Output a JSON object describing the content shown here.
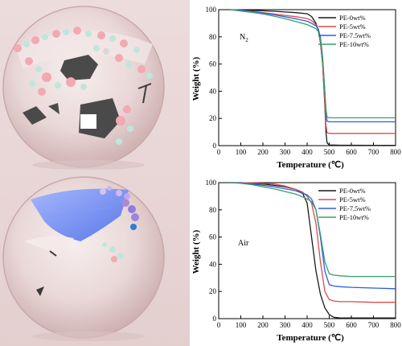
{
  "chart_data": [
    {
      "type": "line",
      "annotation": "N",
      "annotation_sub": "2",
      "xlabel": "Temperature (℃)",
      "ylabel": "Weight (%)",
      "xlim": [
        0,
        800
      ],
      "ylim": [
        0,
        100
      ],
      "xticks": [
        0,
        100,
        200,
        300,
        400,
        500,
        600,
        700,
        800
      ],
      "yticks": [
        0,
        20,
        40,
        60,
        80,
        100
      ],
      "grid": false,
      "legend": "top-right",
      "series": [
        {
          "name": "PE-0wt%",
          "color": "#1a1a1a",
          "x": [
            50,
            100,
            150,
            200,
            250,
            300,
            350,
            400,
            420,
            440,
            450,
            460,
            470,
            480,
            485,
            490,
            500,
            550,
            600,
            700,
            800
          ],
          "y": [
            100,
            99.8,
            99.5,
            99.2,
            98.8,
            98.3,
            97.8,
            97,
            95,
            90,
            85,
            76,
            60,
            30,
            10,
            2,
            0.5,
            0.3,
            0.3,
            0.2,
            0.2
          ]
        },
        {
          "name": "PE-5wt%",
          "color": "#d94d4d",
          "x": [
            50,
            100,
            150,
            200,
            250,
            300,
            350,
            400,
            420,
            440,
            450,
            460,
            470,
            480,
            485,
            490,
            500,
            550,
            600,
            700,
            800
          ],
          "y": [
            100,
            99.5,
            98.8,
            97.8,
            96.8,
            95.8,
            94.8,
            93.5,
            92,
            89,
            85,
            76,
            60,
            32,
            15,
            9.5,
            9,
            9,
            9,
            9,
            9
          ]
        },
        {
          "name": "PE-7.5wt%",
          "color": "#2e5be8",
          "x": [
            50,
            100,
            150,
            200,
            250,
            300,
            350,
            400,
            420,
            440,
            450,
            460,
            470,
            480,
            485,
            490,
            500,
            550,
            600,
            700,
            800
          ],
          "y": [
            100,
            99.5,
            98.5,
            97.5,
            96.2,
            94.8,
            93.2,
            91.5,
            90,
            88,
            86,
            80,
            65,
            40,
            25,
            18,
            17.5,
            17.5,
            17.5,
            17.5,
            17.5
          ]
        },
        {
          "name": "PE-10wt%",
          "color": "#3a9e6c",
          "x": [
            50,
            100,
            150,
            200,
            250,
            300,
            350,
            400,
            420,
            440,
            450,
            460,
            470,
            480,
            485,
            490,
            500,
            550,
            600,
            700,
            800
          ],
          "y": [
            100,
            99,
            98,
            96.8,
            95.2,
            93.3,
            91.2,
            89,
            87.5,
            86,
            84,
            78,
            63,
            40,
            27,
            21,
            20.5,
            20.5,
            20.5,
            20.5,
            20.5
          ]
        }
      ]
    },
    {
      "type": "line",
      "annotation": "Air",
      "annotation_sub": "",
      "xlabel": "Temperature (℃)",
      "ylabel": "Weight (%)",
      "xlim": [
        0,
        800
      ],
      "ylim": [
        0,
        100
      ],
      "xticks": [
        0,
        100,
        200,
        300,
        400,
        500,
        600,
        700,
        800
      ],
      "yticks": [
        0,
        20,
        40,
        60,
        80,
        100
      ],
      "grid": false,
      "legend": "top-right",
      "series": [
        {
          "name": "PE-0wt%",
          "color": "#1a1a1a",
          "x": [
            50,
            100,
            150,
            200,
            250,
            300,
            350,
            380,
            400,
            420,
            440,
            460,
            480,
            500,
            520,
            550,
            600,
            700,
            800
          ],
          "y": [
            100,
            100,
            99.5,
            99,
            98,
            97,
            95,
            92,
            85,
            60,
            35,
            18,
            8,
            3,
            1,
            0.5,
            0.5,
            0.5,
            0.5
          ]
        },
        {
          "name": "PE-5wt%",
          "color": "#d94d4d",
          "x": [
            50,
            100,
            150,
            200,
            250,
            300,
            350,
            380,
            400,
            420,
            440,
            460,
            480,
            500,
            520,
            550,
            600,
            700,
            800
          ],
          "y": [
            100,
            100,
            99.8,
            99.5,
            99,
            97.5,
            95,
            93,
            90,
            85,
            70,
            42,
            20,
            14,
            13,
            12.5,
            12.5,
            12,
            12
          ]
        },
        {
          "name": "PE-7.5wt%",
          "color": "#2e5be8",
          "x": [
            50,
            100,
            150,
            200,
            250,
            300,
            350,
            380,
            400,
            420,
            440,
            460,
            480,
            500,
            520,
            550,
            600,
            700,
            800
          ],
          "y": [
            100,
            99.8,
            99,
            98,
            97,
            95.5,
            94,
            92,
            91,
            88,
            80,
            60,
            35,
            25,
            24,
            23.5,
            23,
            22.5,
            22
          ]
        },
        {
          "name": "PE-10wt%",
          "color": "#3a9e6c",
          "x": [
            50,
            100,
            150,
            200,
            250,
            300,
            350,
            380,
            400,
            420,
            440,
            460,
            480,
            500,
            520,
            550,
            600,
            700,
            800
          ],
          "y": [
            100,
            99.5,
            98.5,
            97,
            95.5,
            93.5,
            91.5,
            89.5,
            88,
            86,
            80,
            62,
            42,
            33,
            32,
            31.5,
            31,
            31,
            31
          ]
        }
      ]
    }
  ]
}
